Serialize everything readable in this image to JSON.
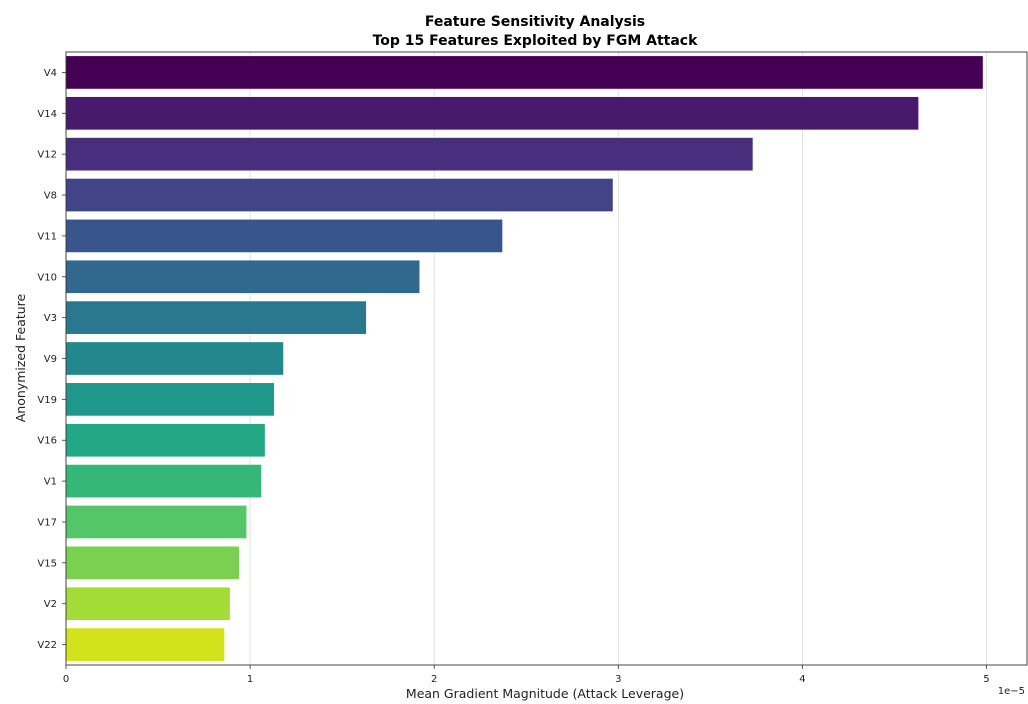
{
  "chart_data": {
    "type": "bar",
    "orientation": "horizontal",
    "title": "Feature Sensitivity Analysis",
    "subtitle": "Top 15 Features Exploited by FGM Attack",
    "xlabel": "Mean Gradient Magnitude (Attack Leverage)",
    "ylabel": "Anonymized Feature",
    "x_scale_label": "1e−5",
    "xlim": [
      0,
      5.22
    ],
    "xticks": [
      0,
      1,
      2,
      3,
      4,
      5
    ],
    "xtick_labels": [
      "0",
      "1",
      "2",
      "3",
      "4",
      "5"
    ],
    "grid": "vertical",
    "legend": "none",
    "categories": [
      "V4",
      "V14",
      "V12",
      "V8",
      "V11",
      "V10",
      "V3",
      "V9",
      "V19",
      "V16",
      "V1",
      "V17",
      "V15",
      "V2",
      "V22"
    ],
    "values": [
      4.98,
      4.63,
      3.73,
      2.97,
      2.37,
      1.92,
      1.63,
      1.18,
      1.13,
      1.08,
      1.06,
      0.98,
      0.94,
      0.89,
      0.86
    ],
    "colors": [
      "#440154",
      "#481a6c",
      "#472f7d",
      "#414487",
      "#39568c",
      "#31688e",
      "#2a788e",
      "#23888e",
      "#1f988b",
      "#22a884",
      "#35b779",
      "#54c568",
      "#7ad151",
      "#a5db36",
      "#d2e21b"
    ]
  }
}
